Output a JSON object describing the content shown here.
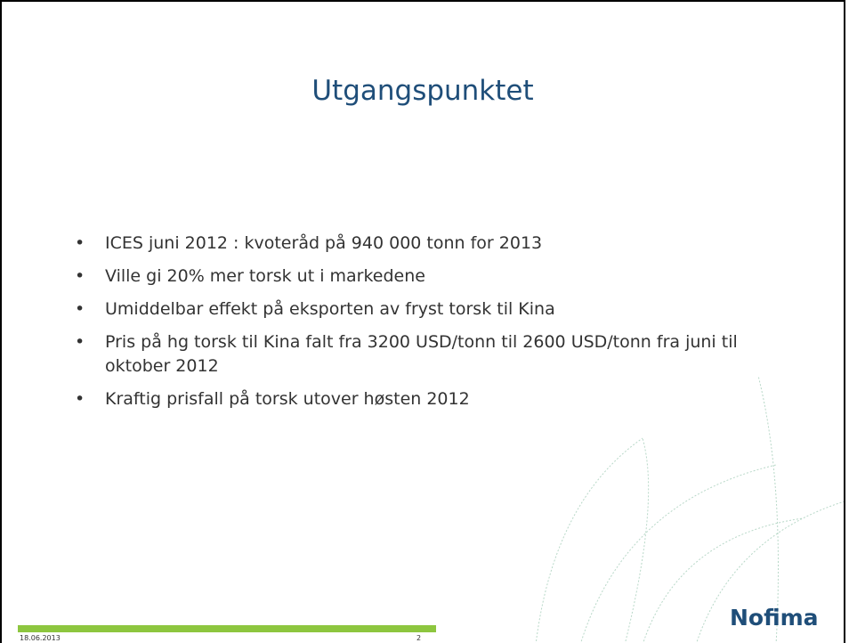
{
  "slide": {
    "title": "Utgangspunktet",
    "bullets": [
      "ICES juni 2012 : kvoteråd på 940 000 tonn for 2013",
      "Ville gi 20% mer torsk ut i markedene",
      "Umiddelbar effekt på eksporten av fryst torsk til Kina",
      "Pris på hg torsk til Kina falt fra 3200 USD/tonn til 2600 USD/tonn fra juni til oktober 2012",
      "Kraftig prisfall på torsk utover høsten 2012"
    ],
    "footer": {
      "date": "18.06.2013",
      "page": "2",
      "logo": "Nofima"
    }
  }
}
